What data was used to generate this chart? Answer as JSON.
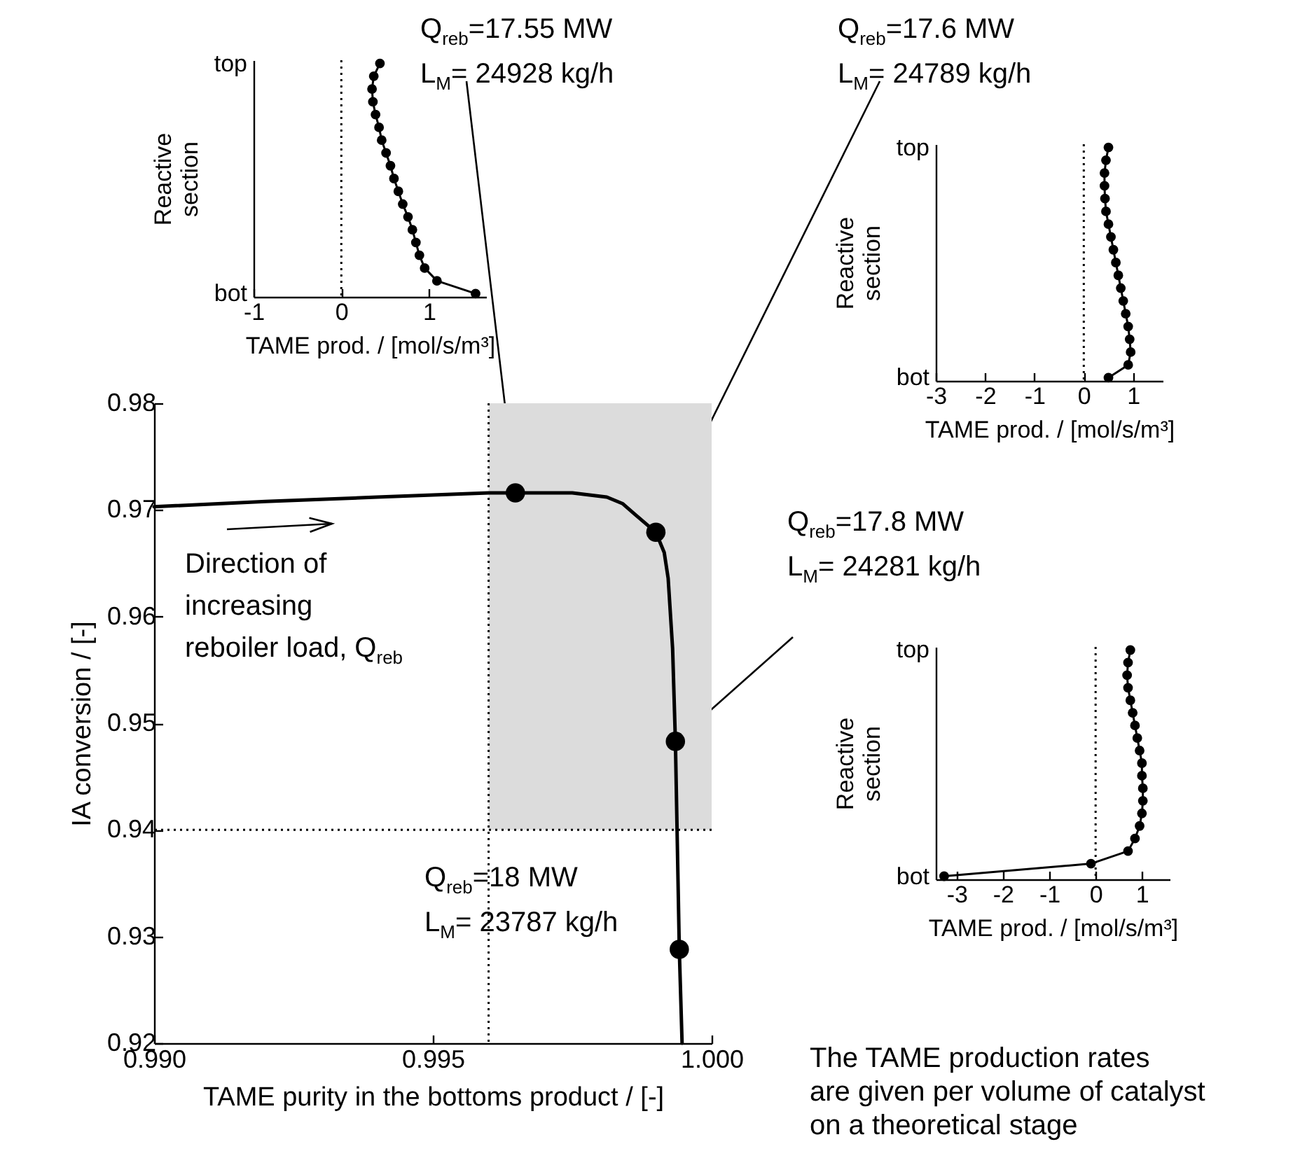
{
  "chart_data": [
    {
      "type": "line",
      "xlabel": "TAME purity in the bottoms product / [-]",
      "ylabel": "IA conversion / [-]",
      "xlim": [
        0.99,
        1.0
      ],
      "xticks": [
        {
          "value": 0.99,
          "label": "0.990"
        },
        {
          "value": 0.995,
          "label": "0.995"
        },
        {
          "value": 1.0,
          "label": "1.000"
        }
      ],
      "ylim": [
        0.92,
        0.98
      ],
      "yticks": [
        0.92,
        0.93,
        0.94,
        0.95,
        0.96,
        0.97,
        0.98
      ],
      "series": [
        {
          "type": "line",
          "color": "#000000",
          "x": [
            0.99,
            0.992,
            0.994,
            0.996,
            0.99648,
            0.9975,
            0.99812,
            0.9984,
            0.99862,
            0.9988,
            0.999,
            0.99915,
            0.99922,
            0.9993,
            0.99935,
            0.99938,
            0.99942,
            0.99947
          ],
          "values": [
            0.9703,
            0.9708,
            0.9712,
            0.9716,
            0.9716,
            0.9716,
            0.9712,
            0.9706,
            0.9696,
            0.9688,
            0.9679,
            0.966,
            0.9636,
            0.957,
            0.9483,
            0.94,
            0.9288,
            0.92
          ]
        },
        {
          "type": "scatter",
          "marker": "circle",
          "color": "#000000",
          "x": [
            0.99648,
            0.999,
            0.99935,
            0.99942
          ],
          "values": [
            0.9716,
            0.9679,
            0.9483,
            0.9288
          ]
        }
      ],
      "bands": [
        {
          "axis": "x",
          "from": 0.996,
          "to": 1.0,
          "color": "#dcdcdc"
        }
      ],
      "ref_lines": [
        {
          "axis": "x",
          "value": 0.996,
          "line_style": "dotted"
        },
        {
          "axis": "y",
          "value": 0.94,
          "line_style": "dotted"
        }
      ],
      "annotations": [
        "Q$_{reb}$=17.55 MW\nL$_{M}$= 24928 kg/h",
        "Q$_{reb}$=17.6 MW\nL$_{M}$= 24789 kg/h",
        "Q$_{reb}$=17.8 MW\nL$_{M}$= 24281 kg/h",
        "Q$_{reb}$=18 MW\nL$_{M}$= 23787 kg/h",
        "Direction of\nincreasing\nreboiler load, Q$_{reb}$",
        "The TAME production rates\nare given per volume of catalyst\non a theoretical stage"
      ]
    },
    {
      "type": "line",
      "orientation": "horizontal",
      "marker": "circle",
      "xlabel": "TAME prod. /  [mol/s/m³]",
      "ylabel": "Reactive\nsection",
      "xlim": [
        -1,
        1.65
      ],
      "xticks": [
        -1,
        0,
        1
      ],
      "categories": [
        "top",
        null,
        null,
        null,
        null,
        null,
        null,
        null,
        null,
        null,
        null,
        null,
        null,
        null,
        null,
        null,
        null,
        null,
        "bot"
      ],
      "series": [
        {
          "color": "#000000",
          "values": [
            0.44,
            0.37,
            0.35,
            0.36,
            0.39,
            0.43,
            0.46,
            0.51,
            0.56,
            0.6,
            0.65,
            0.7,
            0.76,
            0.81,
            0.85,
            0.89,
            0.95,
            1.09,
            1.53
          ]
        }
      ],
      "ref_lines": [
        {
          "axis": "x",
          "value": 0,
          "line_style": "dotted"
        }
      ]
    },
    {
      "type": "line",
      "orientation": "horizontal",
      "marker": "circle",
      "xlabel": "TAME prod.  /  [mol/s/m³]",
      "ylabel": "Reactive\nsection",
      "xlim": [
        -3,
        1.6
      ],
      "xticks": [
        -3,
        -2,
        -1,
        0,
        1
      ],
      "categories": [
        "top",
        null,
        null,
        null,
        null,
        null,
        null,
        null,
        null,
        null,
        null,
        null,
        null,
        null,
        null,
        null,
        null,
        null,
        "bot"
      ],
      "series": [
        {
          "color": "#000000",
          "values": [
            0.5,
            0.45,
            0.42,
            0.42,
            0.43,
            0.45,
            0.5,
            0.55,
            0.6,
            0.65,
            0.7,
            0.75,
            0.8,
            0.85,
            0.9,
            0.93,
            0.95,
            0.9,
            0.5
          ]
        }
      ],
      "ref_lines": [
        {
          "axis": "x",
          "value": 0,
          "line_style": "dotted"
        }
      ]
    },
    {
      "type": "line",
      "orientation": "horizontal",
      "marker": "circle",
      "xlabel": "TAME prod.  /  [mol/s/m³]",
      "ylabel": "Reactive\nsection",
      "xlim": [
        -3.45,
        1.6
      ],
      "xticks": [
        -3,
        -2,
        -1,
        0,
        1
      ],
      "categories": [
        "top",
        null,
        null,
        null,
        null,
        null,
        null,
        null,
        null,
        null,
        null,
        null,
        null,
        null,
        null,
        null,
        null,
        null,
        "bot"
      ],
      "series": [
        {
          "color": "#000000",
          "values": [
            0.75,
            0.7,
            0.68,
            0.7,
            0.75,
            0.8,
            0.85,
            0.9,
            0.95,
            1.0,
            1.0,
            1.02,
            1.02,
            1.0,
            0.95,
            0.85,
            0.7,
            -0.1,
            -3.27
          ]
        }
      ],
      "ref_lines": [
        {
          "axis": "x",
          "value": 0,
          "line_style": "dotted"
        }
      ]
    }
  ]
}
